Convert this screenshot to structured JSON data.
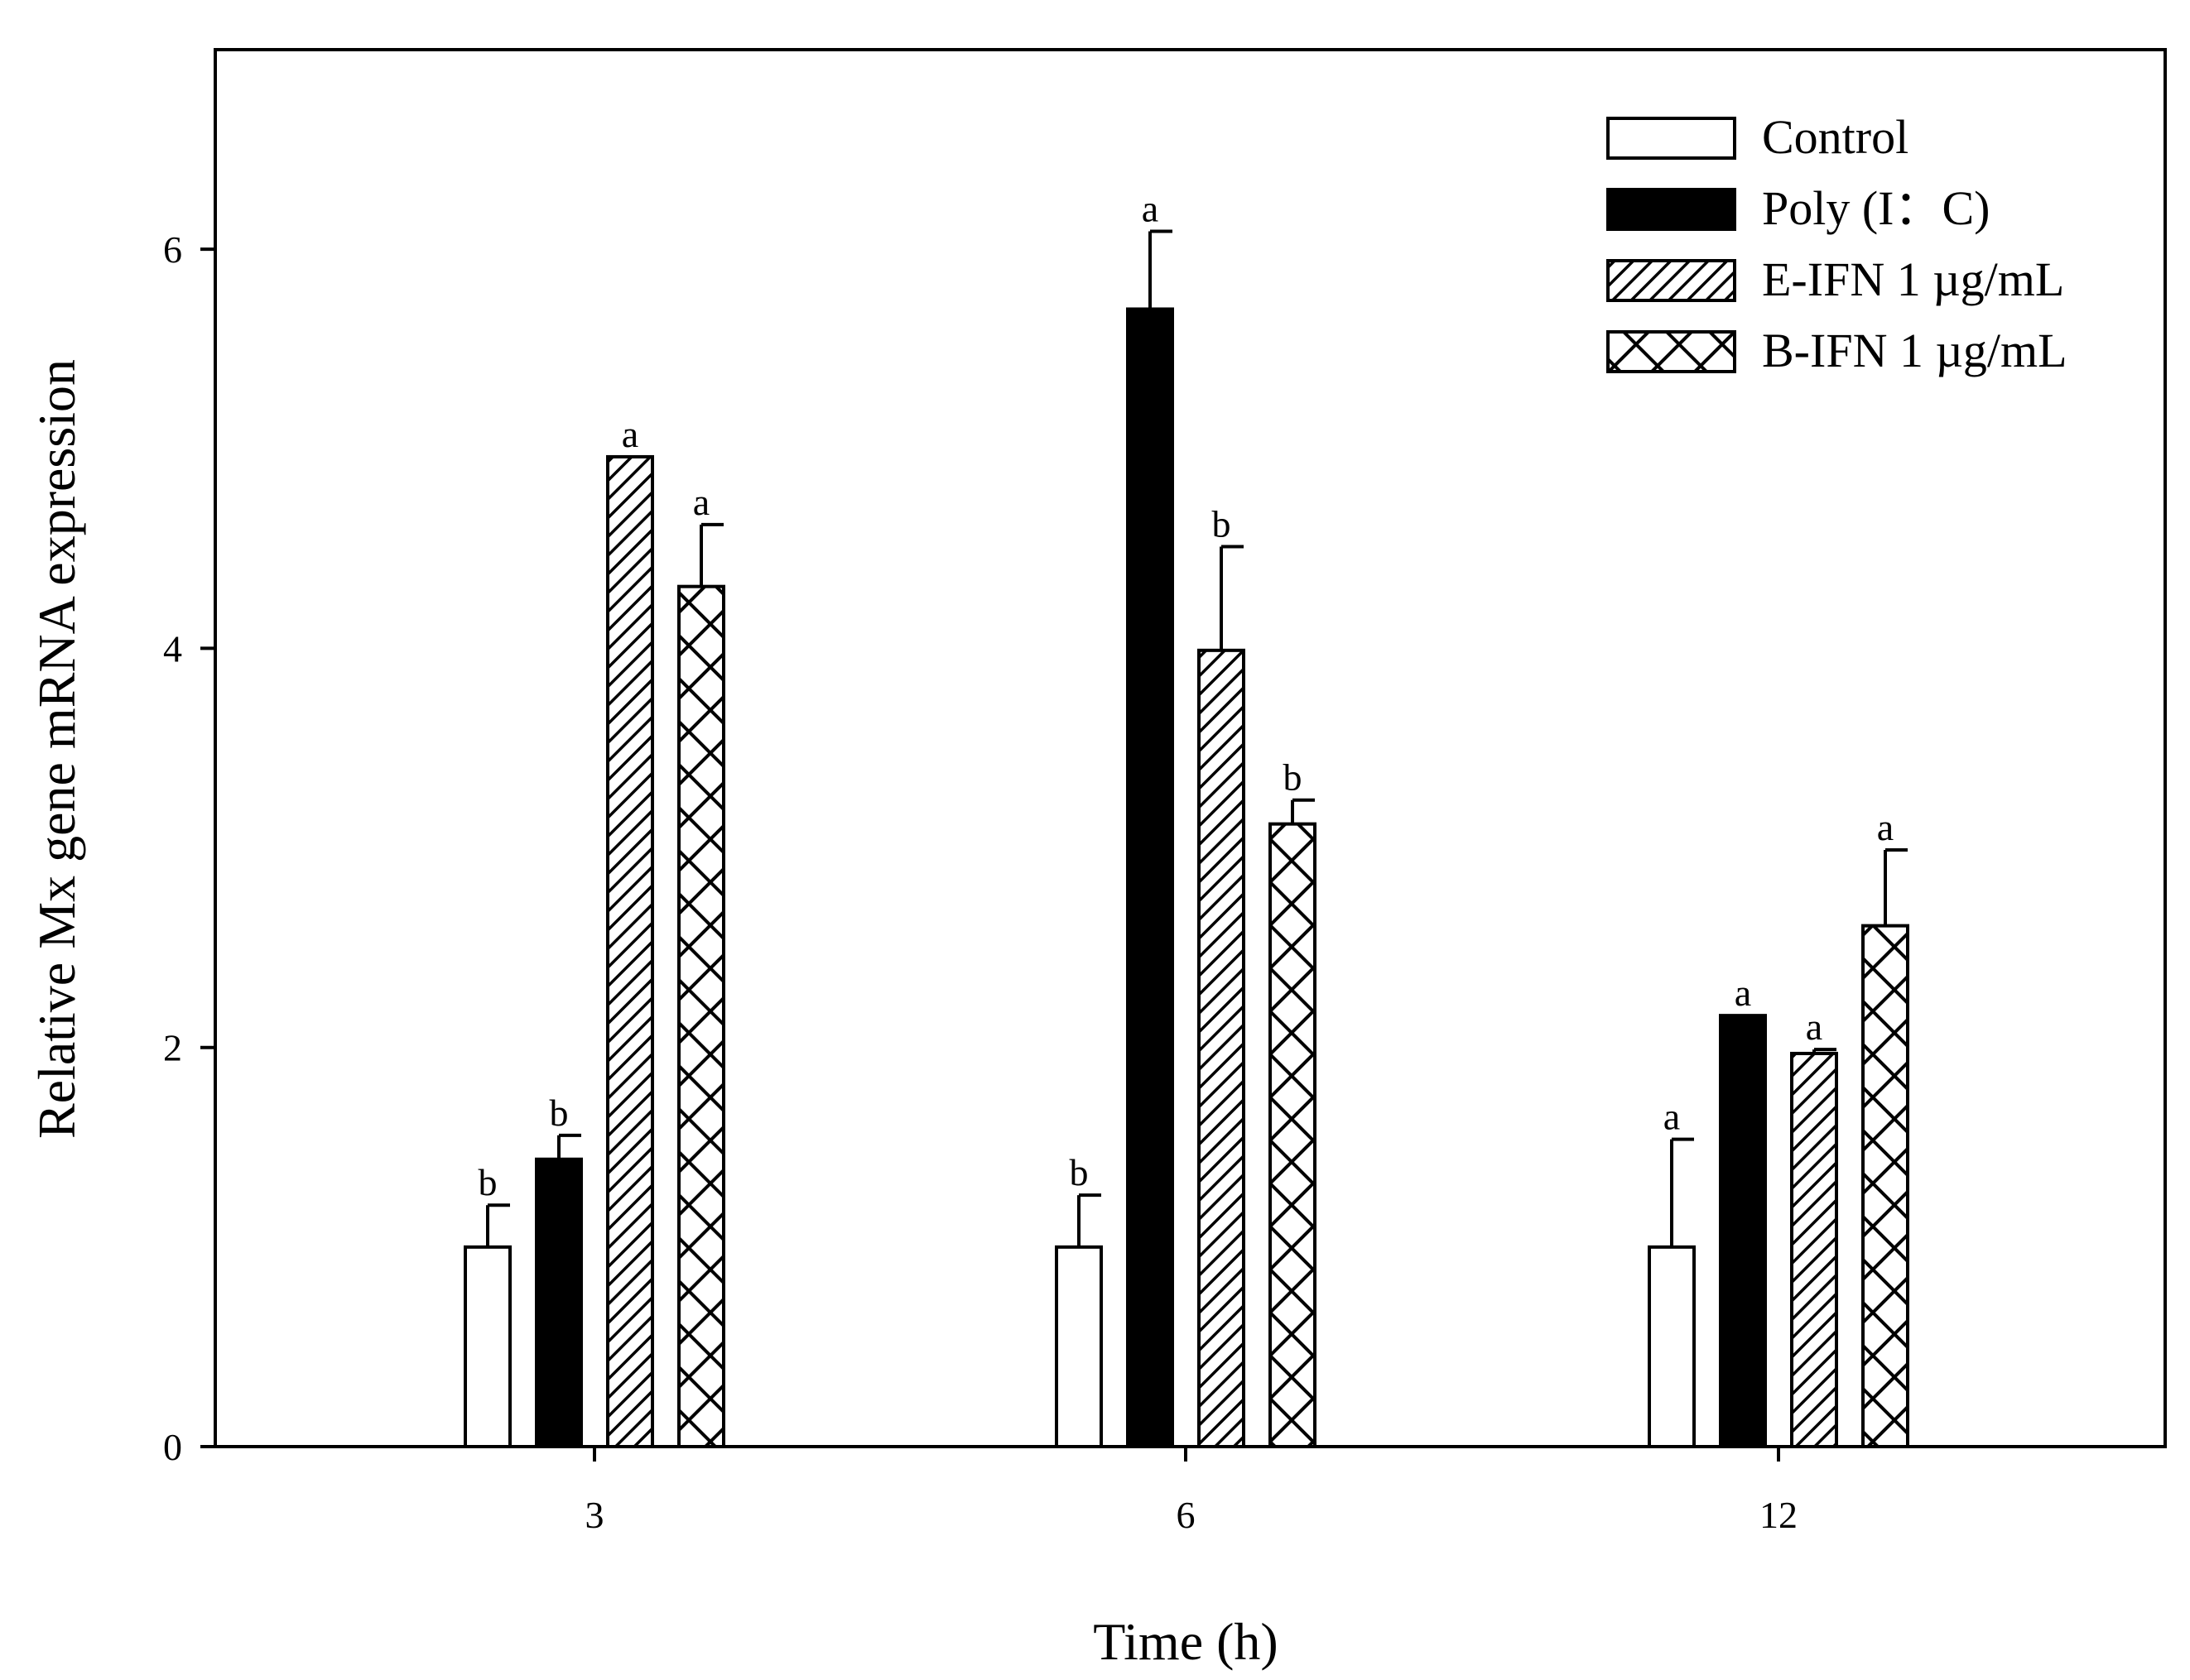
{
  "chart_data": {
    "type": "bar",
    "title": "",
    "xlabel": "Time (h)",
    "ylabel": "Relative Mx gene mRNA expression",
    "categories": [
      "3",
      "6",
      "12"
    ],
    "ylim": [
      0,
      7
    ],
    "yticks": [
      "0",
      "2",
      "4",
      "6"
    ],
    "ytick_values": [
      0,
      2,
      4,
      6
    ],
    "grid": false,
    "legend_position": "top-right",
    "series": [
      {
        "name": "Control",
        "pattern": "white",
        "values": [
          1.0,
          1.0,
          1.0
        ],
        "errors": [
          0.21,
          0.26,
          0.54
        ],
        "labels": [
          "b",
          "b",
          "a"
        ]
      },
      {
        "name": "Poly (I：C)",
        "pattern": "black",
        "values": [
          1.44,
          5.7,
          2.16
        ],
        "errors": [
          0.12,
          0.39,
          0.0
        ],
        "labels": [
          "b",
          "a",
          "a"
        ]
      },
      {
        "name": "E-IFN 1 µg/mL",
        "pattern": "diagonal",
        "values": [
          4.96,
          3.99,
          1.97
        ],
        "errors": [
          0.0,
          0.52,
          0.02
        ],
        "labels": [
          "a",
          "b",
          "a"
        ]
      },
      {
        "name": "B-IFN 1 µg/mL",
        "pattern": "crosshatch",
        "values": [
          4.31,
          3.12,
          2.61
        ],
        "errors": [
          0.31,
          0.12,
          0.38
        ],
        "labels": [
          "a",
          "b",
          "a"
        ]
      }
    ]
  },
  "colors": {
    "axis": "#000000",
    "fill_white": "#ffffff",
    "fill_black": "#000000"
  }
}
